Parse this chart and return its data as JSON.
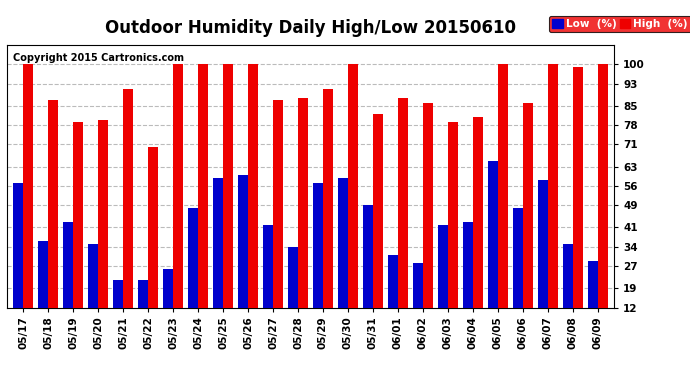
{
  "title": "Outdoor Humidity Daily High/Low 20150610",
  "copyright": "Copyright 2015 Cartronics.com",
  "background_color": "#ffffff",
  "plot_bg_color": "#ffffff",
  "bar_color_low": "#0000cc",
  "bar_color_high": "#ee0000",
  "categories": [
    "05/17",
    "05/18",
    "05/19",
    "05/20",
    "05/21",
    "05/22",
    "05/23",
    "05/24",
    "05/25",
    "05/26",
    "05/27",
    "05/28",
    "05/29",
    "05/30",
    "05/31",
    "06/01",
    "06/02",
    "06/03",
    "06/04",
    "06/05",
    "06/06",
    "06/07",
    "06/08",
    "06/09"
  ],
  "high_values": [
    100,
    87,
    79,
    80,
    91,
    70,
    100,
    100,
    100,
    100,
    87,
    88,
    91,
    100,
    82,
    88,
    86,
    79,
    81,
    100,
    86,
    100,
    99,
    100
  ],
  "low_values": [
    57,
    36,
    43,
    35,
    22,
    22,
    26,
    48,
    59,
    60,
    42,
    34,
    57,
    59,
    49,
    31,
    28,
    42,
    43,
    65,
    48,
    58,
    35,
    29
  ],
  "ylim": [
    12,
    107
  ],
  "yticks": [
    12,
    19,
    27,
    34,
    41,
    49,
    56,
    63,
    71,
    78,
    85,
    93,
    100
  ],
  "grid_color": "#bbbbbb",
  "title_fontsize": 12,
  "tick_fontsize": 7.5,
  "copyright_fontsize": 7
}
